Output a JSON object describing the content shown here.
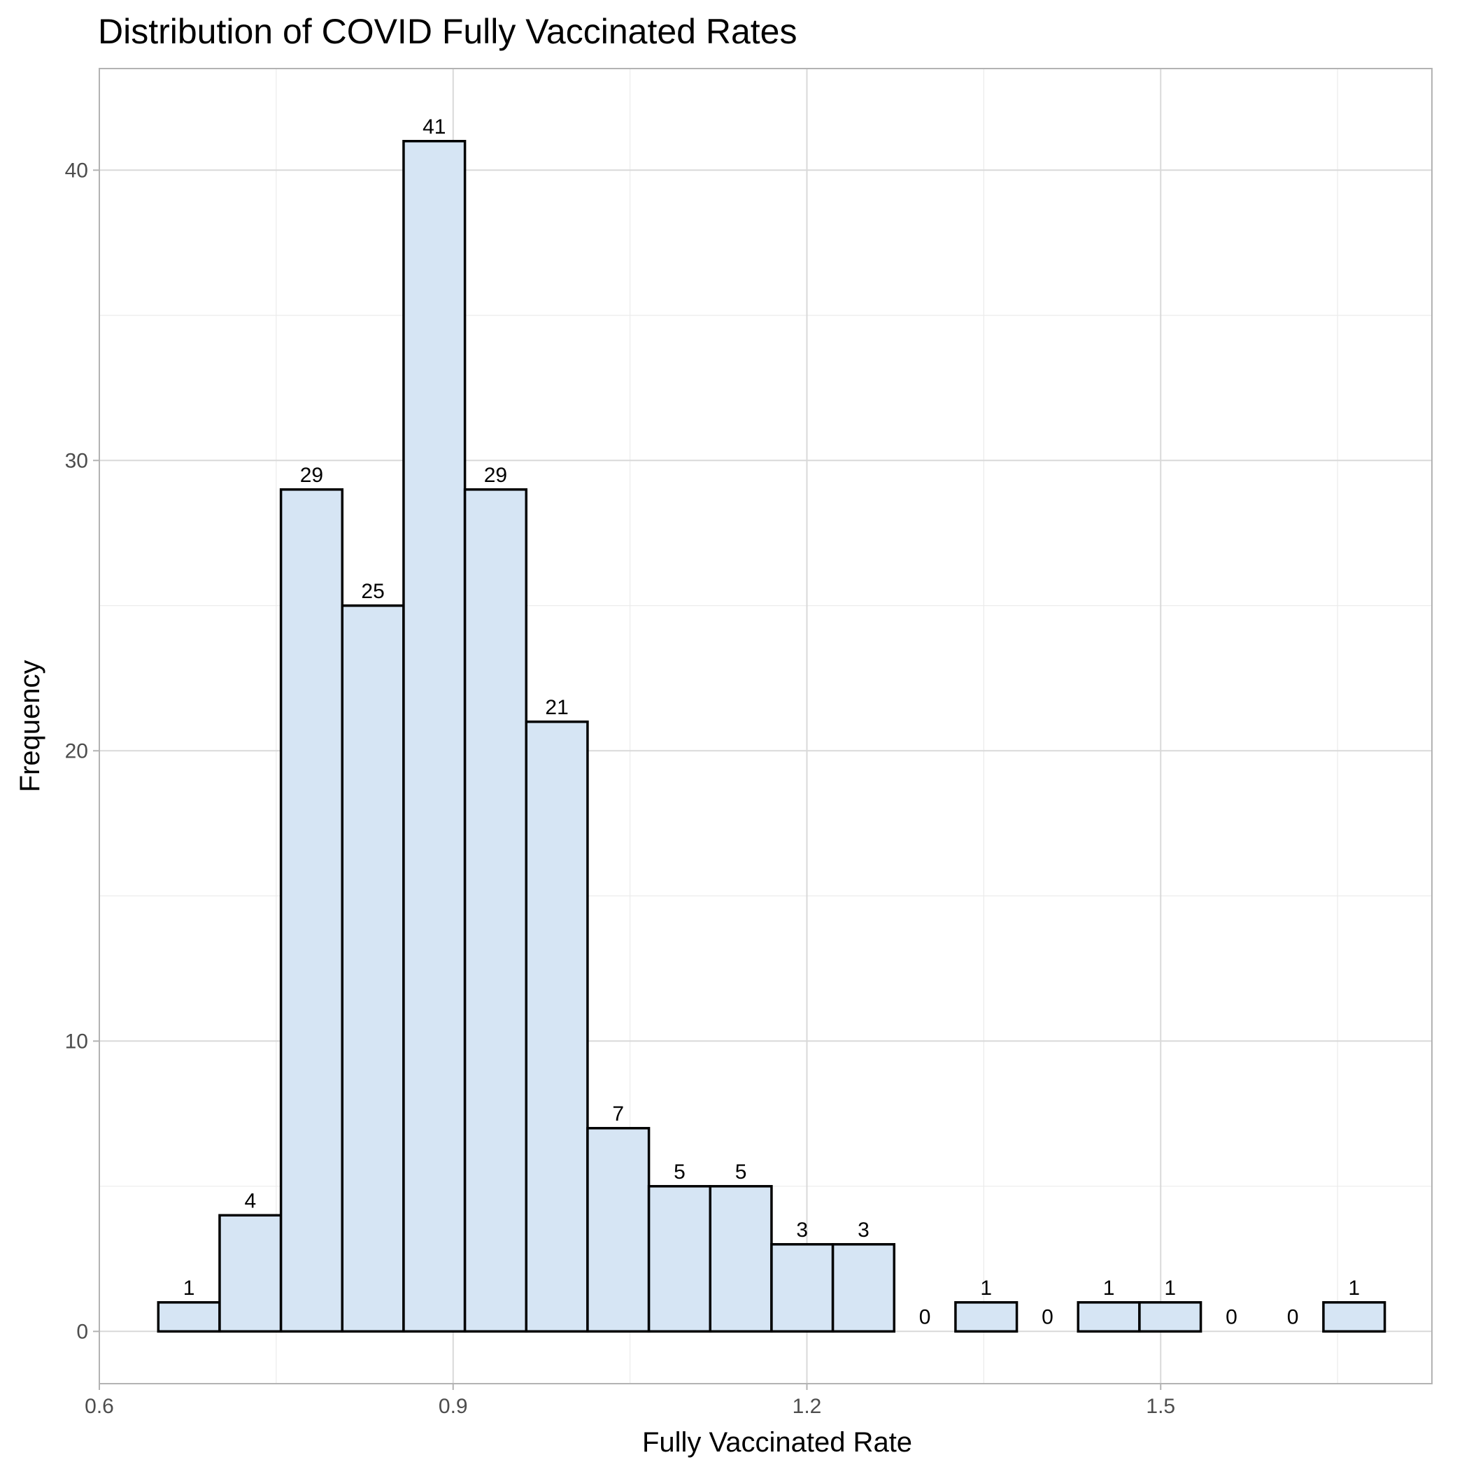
{
  "chart_data": {
    "type": "bar",
    "title": "Distribution of COVID Fully Vaccinated Rates",
    "xlabel": "Fully Vaccinated Rate",
    "ylabel": "Frequency",
    "xlim": [
      0.6,
      1.73
    ],
    "ylim": [
      -1.8,
      43.5
    ],
    "xticks": [
      0.6,
      0.9,
      1.2,
      1.5
    ],
    "xtick_labels": [
      "0.6",
      "0.9",
      "1.2",
      "1.5"
    ],
    "yticks": [
      0,
      10,
      20,
      30,
      40
    ],
    "ytick_labels": [
      "0",
      "10",
      "20",
      "30",
      "40"
    ],
    "grid": true,
    "bin_width": 0.052,
    "bins": [
      {
        "x0": 0.65,
        "x1": 0.702,
        "count": 1
      },
      {
        "x0": 0.702,
        "x1": 0.754,
        "count": 4
      },
      {
        "x0": 0.754,
        "x1": 0.806,
        "count": 29
      },
      {
        "x0": 0.806,
        "x1": 0.858,
        "count": 25
      },
      {
        "x0": 0.858,
        "x1": 0.91,
        "count": 41
      },
      {
        "x0": 0.91,
        "x1": 0.962,
        "count": 29
      },
      {
        "x0": 0.962,
        "x1": 1.014,
        "count": 21
      },
      {
        "x0": 1.014,
        "x1": 1.066,
        "count": 7
      },
      {
        "x0": 1.066,
        "x1": 1.118,
        "count": 5
      },
      {
        "x0": 1.118,
        "x1": 1.17,
        "count": 5
      },
      {
        "x0": 1.17,
        "x1": 1.222,
        "count": 3
      },
      {
        "x0": 1.222,
        "x1": 1.274,
        "count": 3
      },
      {
        "x0": 1.274,
        "x1": 1.326,
        "count": 0
      },
      {
        "x0": 1.326,
        "x1": 1.378,
        "count": 1
      },
      {
        "x0": 1.378,
        "x1": 1.43,
        "count": 0
      },
      {
        "x0": 1.43,
        "x1": 1.482,
        "count": 1
      },
      {
        "x0": 1.482,
        "x1": 1.534,
        "count": 1
      },
      {
        "x0": 1.534,
        "x1": 1.586,
        "count": 0
      },
      {
        "x0": 1.586,
        "x1": 1.638,
        "count": 0
      },
      {
        "x0": 1.638,
        "x1": 1.69,
        "count": 1
      }
    ],
    "bar_fill": "#d6e5f4",
    "bar_stroke": "#000000"
  }
}
